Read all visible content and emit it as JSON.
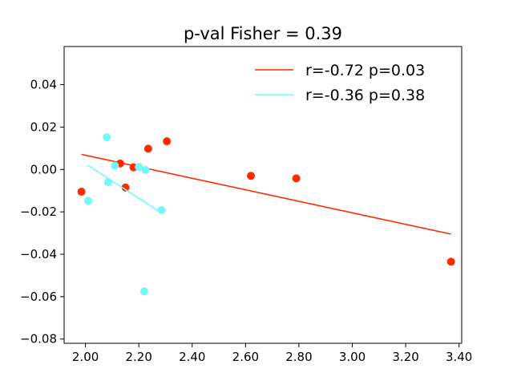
{
  "chart_data": {
    "type": "scatter",
    "title": "p-val Fisher = 0.39",
    "xlabel": "",
    "ylabel": "",
    "xlim": [
      1.92,
      3.41
    ],
    "ylim": [
      -0.082,
      0.058
    ],
    "xticks": [
      2.0,
      2.2,
      2.4,
      2.6,
      2.8,
      3.0,
      3.2,
      3.4
    ],
    "xtick_labels": [
      "2.00",
      "2.20",
      "2.40",
      "2.60",
      "2.80",
      "3.00",
      "3.20",
      "3.40"
    ],
    "yticks": [
      -0.08,
      -0.06,
      -0.04,
      -0.02,
      0.0,
      0.02,
      0.04
    ],
    "ytick_labels": [
      "−0.08",
      "−0.06",
      "−0.04",
      "−0.02",
      "0.00",
      "0.02",
      "0.04"
    ],
    "grid": false,
    "legend_position": "top-right",
    "series": [
      {
        "name": "r=-0.72 p=0.03",
        "color": "#ff2a00",
        "points": [
          {
            "x": 1.985,
            "y": -0.0105
          },
          {
            "x": 2.13,
            "y": 0.0028
          },
          {
            "x": 2.15,
            "y": -0.0085
          },
          {
            "x": 2.18,
            "y": 0.001
          },
          {
            "x": 2.235,
            "y": 0.0098
          },
          {
            "x": 2.305,
            "y": 0.0133
          },
          {
            "x": 2.62,
            "y": -0.003
          },
          {
            "x": 2.79,
            "y": -0.0042
          },
          {
            "x": 3.37,
            "y": -0.0435
          }
        ],
        "fit_line": {
          "x": [
            1.985,
            3.37
          ],
          "y": [
            0.0071,
            -0.0305
          ]
        }
      },
      {
        "name": "r=-0.36 p=0.38",
        "color": "#71f8fb",
        "points": [
          {
            "x": 2.01,
            "y": -0.0148
          },
          {
            "x": 2.08,
            "y": 0.0152
          },
          {
            "x": 2.085,
            "y": -0.006
          },
          {
            "x": 2.11,
            "y": 0.0018
          },
          {
            "x": 2.2,
            "y": 0.0012
          },
          {
            "x": 2.22,
            "y": -0.0575
          },
          {
            "x": 2.225,
            "y": -0.0002
          },
          {
            "x": 2.285,
            "y": -0.0192
          }
        ],
        "fit_line": {
          "x": [
            2.01,
            2.285
          ],
          "y": [
            0.0019,
            -0.0205
          ]
        }
      }
    ]
  }
}
